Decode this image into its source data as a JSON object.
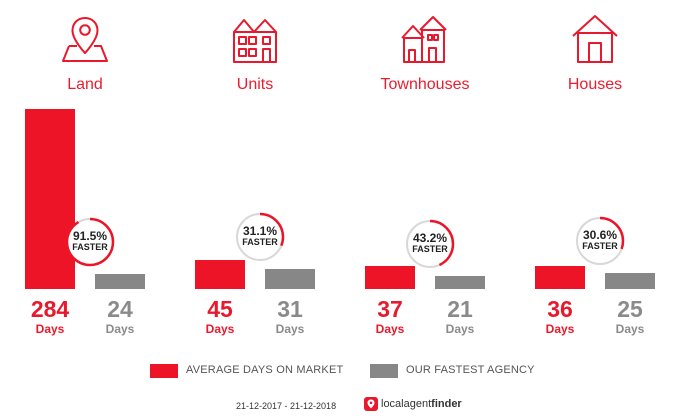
{
  "categories": [
    {
      "label": "Land",
      "icon": "map-pin-icon",
      "avg_days": 284,
      "avg_unit": "Days",
      "fast_days": 24,
      "fast_unit": "Days",
      "percent": "91.5%",
      "faster_label": "FASTER"
    },
    {
      "label": "Units",
      "icon": "units-building-icon",
      "avg_days": 45,
      "avg_unit": "Days",
      "fast_days": 31,
      "fast_unit": "Days",
      "percent": "31.1%",
      "faster_label": "FASTER"
    },
    {
      "label": "Townhouses",
      "icon": "townhouses-icon",
      "avg_days": 37,
      "avg_unit": "Days",
      "fast_days": 21,
      "fast_unit": "Days",
      "percent": "43.2%",
      "faster_label": "FASTER"
    },
    {
      "label": "Houses",
      "icon": "house-icon",
      "avg_days": 36,
      "avg_unit": "Days",
      "fast_days": 25,
      "fast_unit": "Days",
      "percent": "30.6%",
      "faster_label": "FASTER"
    }
  ],
  "legend": {
    "avg_label": "AVERAGE DAYS ON MARKET",
    "fast_label": "OUR FASTEST AGENCY"
  },
  "footer": {
    "date_range": "21-12-2017 - 21-12-2018",
    "brand_light": "localagent",
    "brand_bold": "finder"
  },
  "colors": {
    "accent": "#ec1426",
    "grey": "#878787",
    "ring_track": "#d8d8d8"
  },
  "chart_data": {
    "type": "bar",
    "categories": [
      "Land",
      "Units",
      "Townhouses",
      "Houses"
    ],
    "series": [
      {
        "name": "AVERAGE DAYS ON MARKET",
        "values": [
          284,
          45,
          37,
          36
        ]
      },
      {
        "name": "OUR FASTEST AGENCY",
        "values": [
          24,
          31,
          21,
          25
        ]
      }
    ],
    "annotations": [
      "91.5% FASTER",
      "31.1% FASTER",
      "43.2% FASTER",
      "30.6% FASTER"
    ],
    "ylim": [
      0,
      284
    ],
    "grid": false,
    "legend_position": "bottom"
  }
}
